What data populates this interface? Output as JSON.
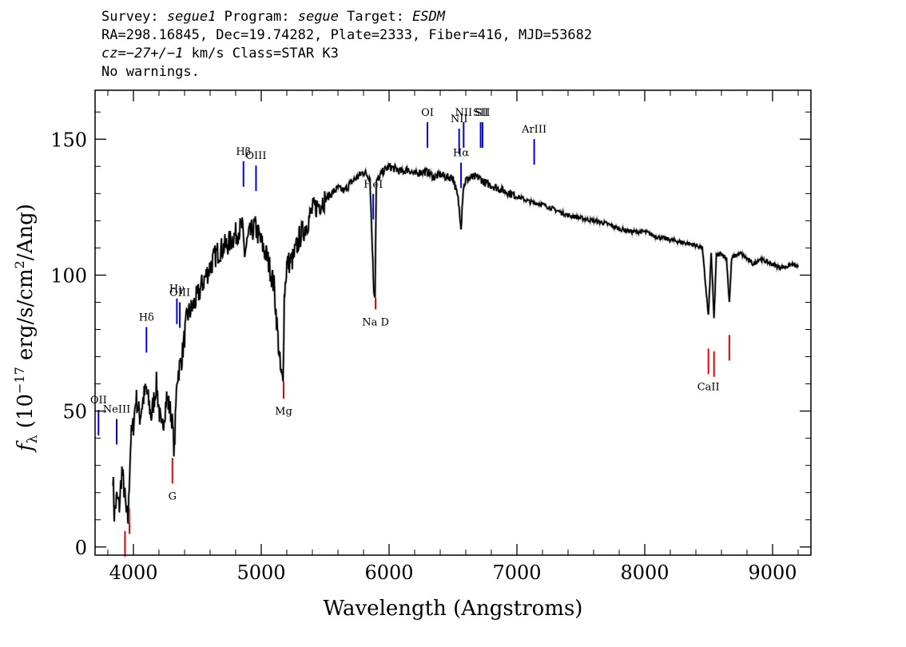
{
  "header": {
    "survey_label": "Survey:",
    "survey": "segue1",
    "program_label": "Program:",
    "program": "segue",
    "target_label": "Target:",
    "target": "ESDM",
    "line2": "RA=298.16845, Dec=19.74282, Plate=2333, Fiber=416, MJD=53682",
    "cz_label": "cz=",
    "cz_value": "−27+/−1",
    "cz_rest": " km/s Class=STAR K3",
    "line4": "No warnings."
  },
  "chart_data": {
    "type": "line",
    "title": "",
    "xlabel": "Wavelength (Angstroms)",
    "ylabel": "f_λ (10^-17 erg/s/cm^2/Ang)",
    "xlim": [
      3700,
      9300
    ],
    "ylim": [
      -3,
      168
    ],
    "x_ticks": [
      4000,
      5000,
      6000,
      7000,
      8000,
      9000
    ],
    "y_ticks": [
      0,
      50,
      100,
      150
    ],
    "grid": false,
    "series": [
      {
        "color": "#000000",
        "x": [
          3840,
          3850,
          3870,
          3890,
          3910,
          3930,
          3945,
          3960,
          3970,
          3980,
          4000,
          4020,
          4050,
          4080,
          4100,
          4140,
          4180,
          4220,
          4260,
          4300,
          4320,
          4340,
          4380,
          4420,
          4460,
          4500,
          4550,
          4600,
          4650,
          4700,
          4750,
          4800,
          4850,
          4870,
          4900,
          4950,
          5000,
          5050,
          5100,
          5150,
          5170,
          5180,
          5200,
          5250,
          5300,
          5350,
          5400,
          5450,
          5500,
          5550,
          5600,
          5650,
          5700,
          5750,
          5800,
          5850,
          5880,
          5890,
          5900,
          5950,
          6000,
          6050,
          6100,
          6150,
          6200,
          6250,
          6300,
          6350,
          6400,
          6450,
          6500,
          6540,
          6563,
          6580,
          6600,
          6650,
          6700,
          6750,
          6800,
          6900,
          7000,
          7100,
          7200,
          7300,
          7400,
          7500,
          7600,
          7700,
          7800,
          7900,
          8000,
          8100,
          8200,
          8300,
          8400,
          8450,
          8498,
          8520,
          8542,
          8560,
          8600,
          8640,
          8662,
          8680,
          8700,
          8750,
          8800,
          8850,
          8900,
          8950,
          9000,
          9050,
          9100,
          9150,
          9200
        ],
        "y": [
          27,
          12,
          18,
          15,
          28,
          20,
          12,
          10,
          28,
          40,
          45,
          55,
          48,
          55,
          58,
          48,
          60,
          42,
          55,
          48,
          35,
          62,
          70,
          85,
          88,
          92,
          98,
          103,
          108,
          110,
          112,
          115,
          118,
          108,
          114,
          118,
          112,
          106,
          96,
          65,
          60,
          92,
          104,
          106,
          114,
          118,
          124,
          126,
          128,
          130,
          132,
          131,
          134,
          136,
          138,
          136,
          95,
          92,
          134,
          138,
          140,
          139,
          138,
          139,
          137,
          138,
          138,
          136,
          137,
          136,
          136,
          128,
          118,
          132,
          135,
          136,
          136,
          134,
          133,
          131,
          129,
          127,
          126,
          124,
          122,
          121,
          120,
          119,
          117,
          116,
          116,
          114,
          113,
          112,
          111,
          110,
          85,
          108,
          84,
          107,
          108,
          106,
          90,
          106,
          107,
          108,
          106,
          104,
          106,
          105,
          104,
          103,
          103,
          104,
          103
        ]
      }
    ],
    "line_markers": [
      {
        "label": "OII",
        "x": 3727,
        "color": "blue"
      },
      {
        "label": "NeIII",
        "x": 3869,
        "color": "blue"
      },
      {
        "label": "Hδ",
        "x": 4102,
        "color": "blue"
      },
      {
        "label": "Hγ",
        "x": 4340,
        "color": "blue"
      },
      {
        "label": "OIII",
        "x": 4363,
        "color": "blue"
      },
      {
        "label": "Hβ",
        "x": 4861,
        "color": "blue"
      },
      {
        "label": "OIII",
        "x": 4959,
        "color": "blue"
      },
      {
        "label": "HeI",
        "x": 5876,
        "color": "blue"
      },
      {
        "label": "OI",
        "x": 6300,
        "color": "blue"
      },
      {
        "label": "NII",
        "x": 6548,
        "color": "blue"
      },
      {
        "label": "Hα",
        "x": 6563,
        "color": "blue"
      },
      {
        "label": "NII",
        "x": 6583,
        "color": "blue"
      },
      {
        "label": "SII",
        "x": 6716,
        "color": "blue"
      },
      {
        "label": "SII",
        "x": 6731,
        "color": "blue"
      },
      {
        "label": "ArIII",
        "x": 7135,
        "color": "blue"
      },
      {
        "label": "",
        "x": 3934,
        "color": "red"
      },
      {
        "label": "",
        "x": 3969,
        "color": "red"
      },
      {
        "label": "G",
        "x": 4305,
        "color": "red"
      },
      {
        "label": "Mg",
        "x": 5175,
        "color": "red"
      },
      {
        "label": "Na D",
        "x": 5894,
        "color": "red"
      },
      {
        "label": "CaII",
        "x": 8498,
        "color": "red"
      },
      {
        "label": "",
        "x": 8542,
        "color": "red"
      },
      {
        "label": "",
        "x": 8662,
        "color": "red"
      }
    ]
  }
}
